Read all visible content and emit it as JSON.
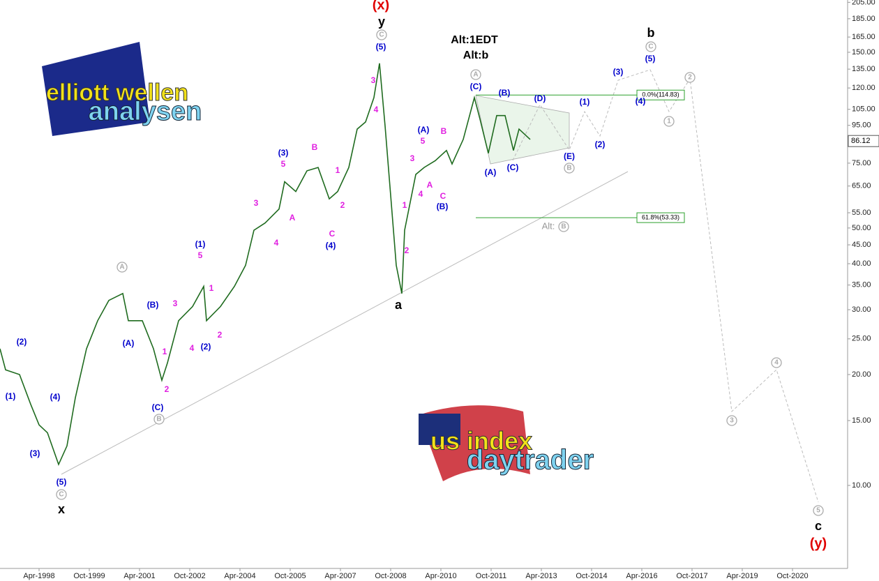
{
  "chart_data": {
    "type": "line",
    "series": [
      {
        "color": "#1f6b1f",
        "x": [
          "Feb-1997",
          "Apr-1997",
          "Sep-1997",
          "Jan-1998",
          "Apr-1998",
          "Jul-1998",
          "Nov-1998",
          "Feb-1999",
          "May-1999",
          "Sep-1999",
          "Jan-2000",
          "May-2000",
          "Oct-2000",
          "Dec-2000",
          "May-2001",
          "Sep-2001",
          "Dec-2001",
          "Feb-2002",
          "Jun-2002",
          "Nov-2002",
          "Mar-2003",
          "Apr-2003",
          "Sep-2003",
          "Feb-2004",
          "Jun-2004",
          "Sep-2004",
          "Jan-2005",
          "Jun-2005",
          "Aug-2005",
          "Dec-2005",
          "Apr-2006",
          "Aug-2006",
          "Dec-2006",
          "Mar-2007",
          "Jul-2007",
          "Oct-2007",
          "Jan-2008",
          "Apr-2008",
          "Jun-2008",
          "Aug-2008",
          "Oct-2008",
          "Dec-2008",
          "Feb-2009",
          "Mar-2009",
          "Jul-2009",
          "Oct-2009",
          "Feb-2010",
          "Jun-2010",
          "Aug-2010",
          "Dec-2010",
          "Apr-2011",
          "Jun-2011",
          "Sep-2011",
          "Dec-2011",
          "Mar-2012",
          "Jun-2012",
          "Aug-2012",
          "Dec-2012"
        ],
        "values": [
          23.5,
          20.6,
          20,
          16.6,
          14.6,
          13.9,
          11.4,
          12.8,
          17.3,
          23.5,
          28,
          31.8,
          33.2,
          28,
          28,
          23.5,
          19.3,
          21.5,
          28,
          30.6,
          34.7,
          28,
          30.6,
          34.7,
          39.6,
          49.3,
          51.6,
          56.3,
          66.8,
          62.8,
          71.5,
          73,
          60,
          62.8,
          73,
          92.8,
          97,
          113,
          140,
          94.6,
          61.3,
          39.6,
          33.2,
          49.3,
          69.9,
          73,
          76.2,
          81.2,
          74.6,
          87,
          113,
          98.8,
          79.8,
          101,
          101,
          81.2,
          92.8,
          87
        ]
      }
    ],
    "xlim": [
      "Feb-1997",
      "May-2022"
    ],
    "xticks": [
      "Apr-1998",
      "Oct-1999",
      "Apr-2001",
      "Oct-2002",
      "Apr-2004",
      "Oct-2005",
      "Apr-2007",
      "Oct-2008",
      "Apr-2010",
      "Oct-2011",
      "Apr-2013",
      "Oct-2014",
      "Apr-2016",
      "Oct-2017",
      "Apr-2019",
      "Oct-2020"
    ],
    "ylim": [
      5.95,
      208
    ],
    "log_y": true,
    "yticks": [
      {
        "value": 10,
        "label": "10.00"
      },
      {
        "value": 15,
        "label": "15.00"
      },
      {
        "value": 20,
        "label": "20.00"
      },
      {
        "value": 25,
        "label": "25.00"
      },
      {
        "value": 30,
        "label": "30.00"
      },
      {
        "value": 35,
        "label": "35.00"
      },
      {
        "value": 40,
        "label": "40.00"
      },
      {
        "value": 45,
        "label": "45.00"
      },
      {
        "value": 50,
        "label": "50.00"
      },
      {
        "value": 55,
        "label": "55.00"
      },
      {
        "value": 65,
        "label": "65.00"
      },
      {
        "value": 75,
        "label": "75.00"
      },
      {
        "value": 95,
        "label": "95.00"
      },
      {
        "value": 105,
        "label": "105.00"
      },
      {
        "value": 120,
        "label": "120.00"
      },
      {
        "value": 135,
        "label": "135.00"
      },
      {
        "value": 150,
        "label": "150.00"
      },
      {
        "value": 165,
        "label": "165.00"
      },
      {
        "value": 185,
        "label": "185.00"
      },
      {
        "value": 205,
        "label": "205.00"
      }
    ],
    "last_price": 86.12,
    "levels": [
      {
        "value": 114.83,
        "label": "0.0%(114.83)",
        "color": "#2ca02c"
      },
      {
        "value": 53.33,
        "label": "61.8%(53.33)",
        "color": "#2ca02c"
      }
    ],
    "annotations": [
      {
        "color": "#000000",
        "labels": [
          "y",
          "Alt:1EDT",
          "Alt:b",
          "b",
          "a",
          "x",
          "c"
        ]
      },
      {
        "color": "#e00000",
        "labels": [
          "(x)",
          "(y)"
        ]
      },
      {
        "color": "#999999",
        "labels": [
          "Alt:"
        ]
      },
      {
        "color": "#aaaaaa",
        "circled": true,
        "labels": [
          "C",
          "A",
          "C",
          "2",
          "1",
          "B",
          "B",
          "A",
          "B",
          "C",
          "3",
          "4",
          "5"
        ]
      },
      {
        "color": "#0000cc",
        "labels": [
          "(5)",
          "(C)",
          "(B)",
          "(D)",
          "(1)",
          "(3)",
          "(5)",
          "(4)",
          "(2)",
          "(E)",
          "(A)",
          "(C)",
          "(A)",
          "(B)",
          "(3)",
          "(4)",
          "(1)",
          "(B)",
          "(A)",
          "(2)",
          "(C)",
          "(2)",
          "(1)",
          "(4)",
          "(3)",
          "(5)"
        ]
      },
      {
        "color": "#e020e0",
        "labels": [
          "3",
          "4",
          "5",
          "B",
          "3",
          "4",
          "A",
          "C",
          "1",
          "2",
          "5",
          "B",
          "3",
          "A",
          "4",
          "1",
          "2",
          "C",
          "5",
          "1",
          "3",
          "4",
          "2",
          "1",
          "2"
        ]
      }
    ],
    "logos": [
      "elliott wellen",
      "analysen",
      "us index",
      "daytrader"
    ]
  }
}
